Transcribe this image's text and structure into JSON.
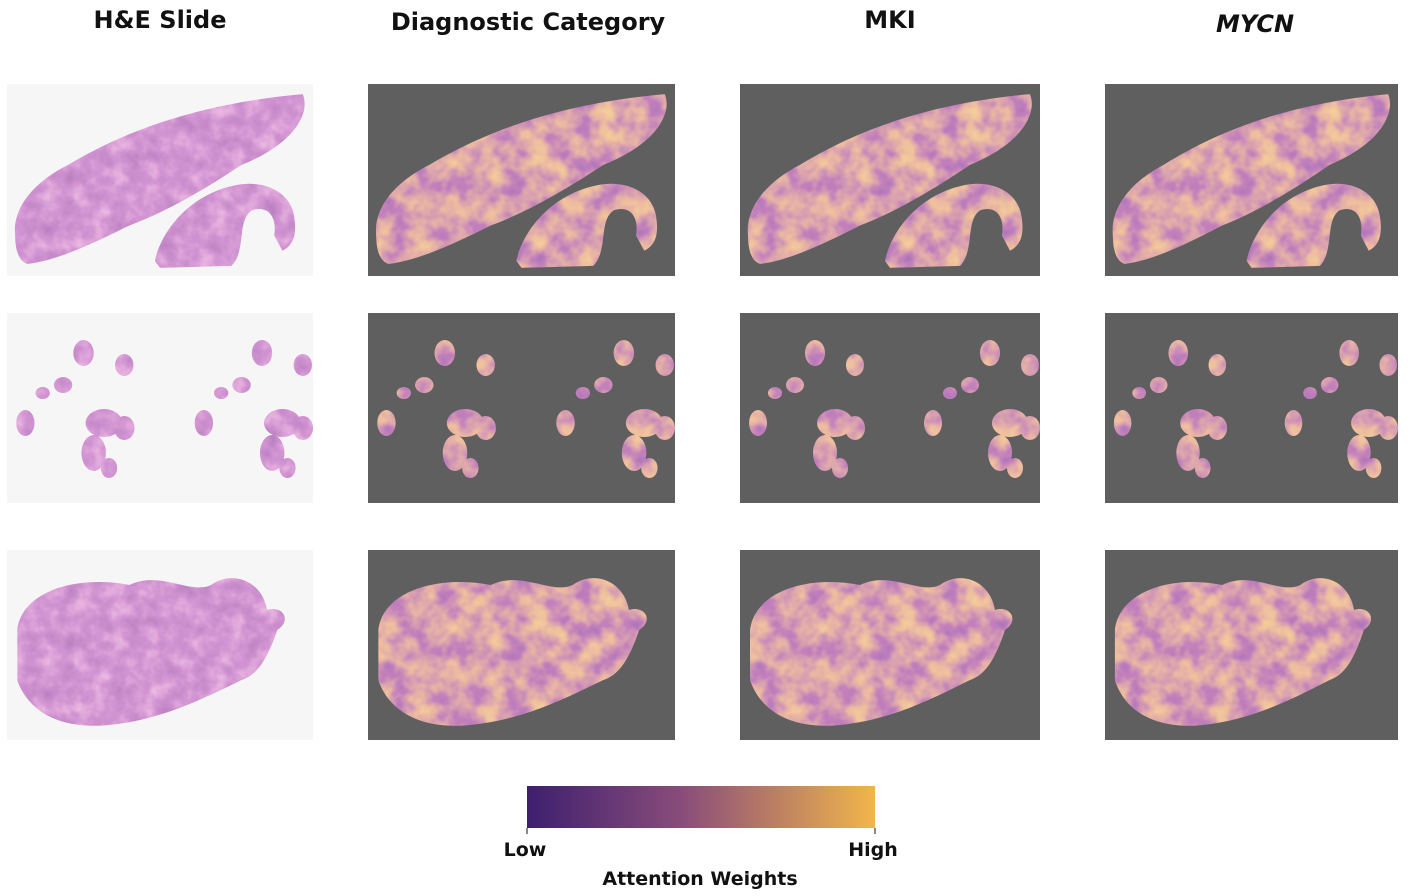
{
  "columns": [
    "H&E Slide",
    "Diagnostic Category",
    "MKI",
    "MYCN"
  ],
  "colorbar": {
    "low": "Low",
    "high": "High",
    "title": "Attention Weights"
  }
}
